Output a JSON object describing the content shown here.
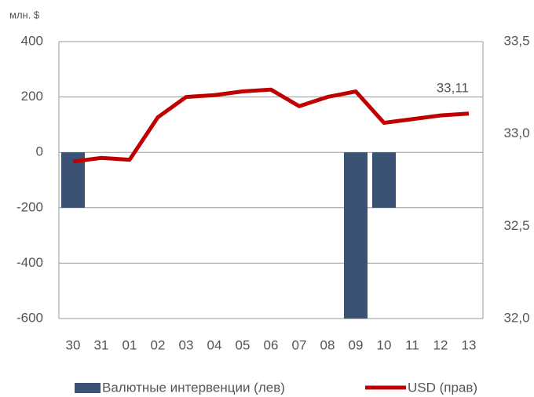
{
  "chart_data": {
    "type": "bar-line",
    "ylabel": "млн. $",
    "categories": [
      "30",
      "31",
      "01",
      "02",
      "03",
      "04",
      "05",
      "06",
      "07",
      "08",
      "09",
      "10",
      "11",
      "12",
      "13"
    ],
    "series": [
      {
        "name": "Валютные интервенции (лев)",
        "type": "bar",
        "color": "#3b5275",
        "values": [
          -200,
          0,
          0,
          0,
          0,
          0,
          0,
          0,
          0,
          0,
          -600,
          -200,
          0,
          0,
          0
        ]
      },
      {
        "name": "USD (прав)",
        "type": "line",
        "axis": "y2",
        "color": "#c00000",
        "values": [
          32.85,
          32.87,
          32.86,
          33.09,
          33.2,
          33.21,
          33.23,
          33.24,
          33.15,
          33.2,
          33.23,
          33.06,
          33.08,
          33.1,
          33.11
        ],
        "value_labels": [
          null,
          null,
          null,
          null,
          null,
          null,
          null,
          null,
          null,
          null,
          null,
          null,
          null,
          null,
          "33,11"
        ]
      }
    ],
    "ylim": [
      -600,
      400
    ],
    "yticks": [
      -600,
      -400,
      -200,
      0,
      200,
      400
    ],
    "y2lim": [
      32,
      33.5
    ],
    "y2ticks": [
      {
        "value": 32,
        "label": "32,0"
      },
      {
        "value": 32.5,
        "label": "32,5"
      },
      {
        "value": 33,
        "label": "33,0"
      },
      {
        "value": 33.5,
        "label": "33,5"
      }
    ],
    "grid": true
  }
}
